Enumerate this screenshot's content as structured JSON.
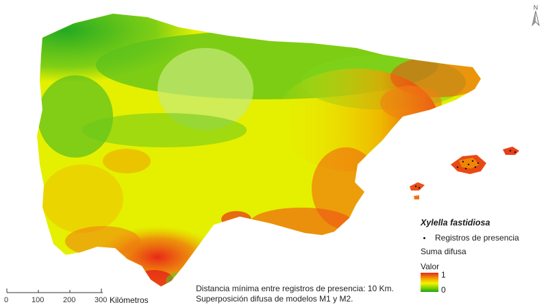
{
  "legend": {
    "species": "Xylella fastidiosa",
    "presence_label": "Registros de presencia",
    "layer_label": "Suma difusa",
    "value_label": "Valor",
    "value_max": "1",
    "value_min": "0"
  },
  "notes": {
    "line1": "Distancia mínima entre registros de presencia: 10 Km.",
    "line2": "Superposición difusa de modelos M1 y M2."
  },
  "scale_bar": {
    "ticks": [
      "0",
      "100",
      "200",
      "300"
    ],
    "unit": "Kilómetros"
  },
  "north_arrow": {
    "label": "N",
    "icon": "north-arrow-icon"
  },
  "colors": {
    "high": "#e8271a",
    "mid_high": "#f2a000",
    "mid": "#f4f400",
    "mid_low": "#7fd000",
    "low": "#1aa51a"
  }
}
